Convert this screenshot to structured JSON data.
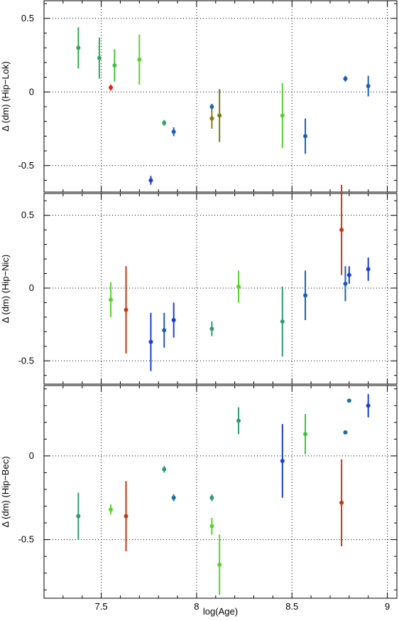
{
  "chart_data": {
    "type": "scatter",
    "shared_x": {
      "label": "log(Age)",
      "range": [
        7.2,
        9.05
      ],
      "ticks": [
        7.5,
        8,
        8.5,
        9
      ],
      "tick_labels": [
        "7.5",
        "8",
        "8.5",
        "9"
      ]
    },
    "grid": true,
    "grid_style": "dotted",
    "panels": [
      {
        "ylabel": "Δ (dm)  (Hip−Lok)",
        "ylim": [
          -0.68,
          0.62
        ],
        "yticks": [
          0.5,
          0,
          -0.5
        ],
        "ytick_labels": [
          "0.5",
          "0",
          "-0.5"
        ],
        "points": [
          {
            "x": 7.38,
            "y": 0.3,
            "err": 0.14,
            "color": "#2eaa58"
          },
          {
            "x": 7.49,
            "y": 0.23,
            "err": 0.14,
            "color": "#2eaa58"
          },
          {
            "x": 7.55,
            "y": 0.03,
            "err": 0.02,
            "color": "#e82010"
          },
          {
            "x": 7.57,
            "y": 0.18,
            "err": 0.11,
            "color": "#3cc43c"
          },
          {
            "x": 7.7,
            "y": 0.22,
            "err": 0.17,
            "color": "#5ad12e"
          },
          {
            "x": 7.76,
            "y": -0.6,
            "err": 0.03,
            "color": "#1e3fd0"
          },
          {
            "x": 7.83,
            "y": -0.21,
            "err": 0.02,
            "color": "#2eaa58"
          },
          {
            "x": 7.88,
            "y": -0.27,
            "err": 0.03,
            "color": "#1b5fb0"
          },
          {
            "x": 8.08,
            "y": -0.18,
            "err": 0.07,
            "color": "#8a7a10"
          },
          {
            "x": 8.08,
            "y": -0.1,
            "err": 0.02,
            "color": "#1b6fa0"
          },
          {
            "x": 8.12,
            "y": -0.16,
            "err": 0.18,
            "color": "#7a7818"
          },
          {
            "x": 8.45,
            "y": -0.16,
            "err": 0.22,
            "color": "#5ad12e"
          },
          {
            "x": 8.57,
            "y": -0.3,
            "err": 0.12,
            "color": "#1b5fb0"
          },
          {
            "x": 8.78,
            "y": 0.09,
            "err": 0.02,
            "color": "#1b5fb0"
          },
          {
            "x": 8.9,
            "y": 0.04,
            "err": 0.07,
            "color": "#1b5fb0"
          }
        ]
      },
      {
        "ylabel": "Δ (dm)  (Hip−Nic)",
        "ylim": [
          -0.66,
          0.65
        ],
        "yticks": [
          0.5,
          0,
          -0.5
        ],
        "ytick_labels": [
          "0.5",
          "0",
          "-0.5"
        ],
        "points": [
          {
            "x": 7.55,
            "y": -0.08,
            "err": 0.12,
            "color": "#5ad12e"
          },
          {
            "x": 7.63,
            "y": -0.15,
            "err": 0.3,
            "color": "#c03a18"
          },
          {
            "x": 7.76,
            "y": -0.37,
            "err": 0.2,
            "color": "#1e3fd0"
          },
          {
            "x": 7.83,
            "y": -0.29,
            "err": 0.12,
            "color": "#1b5fb0"
          },
          {
            "x": 7.88,
            "y": -0.22,
            "err": 0.12,
            "color": "#1e3fd0"
          },
          {
            "x": 8.08,
            "y": -0.28,
            "err": 0.05,
            "color": "#2e9a78"
          },
          {
            "x": 8.22,
            "y": 0.01,
            "err": 0.11,
            "color": "#5ad12e"
          },
          {
            "x": 8.45,
            "y": -0.23,
            "err": 0.24,
            "color": "#2e9a78"
          },
          {
            "x": 8.57,
            "y": -0.05,
            "err": 0.17,
            "color": "#1b5fb0"
          },
          {
            "x": 8.76,
            "y": 0.4,
            "err": 0.31,
            "color": "#c03a18"
          },
          {
            "x": 8.78,
            "y": 0.03,
            "err": 0.12,
            "color": "#1b5fb0"
          },
          {
            "x": 8.8,
            "y": 0.09,
            "err": 0.06,
            "color": "#1e3fd0"
          },
          {
            "x": 8.9,
            "y": 0.13,
            "err": 0.08,
            "color": "#1e3fd0"
          }
        ]
      },
      {
        "ylabel": "Δ (dm)  (Hip−Bec)",
        "ylim": [
          -0.85,
          0.42
        ],
        "yticks": [
          0,
          -0.5
        ],
        "ytick_labels": [
          "0",
          "-0.5"
        ],
        "points": [
          {
            "x": 7.38,
            "y": -0.36,
            "err": 0.14,
            "color": "#2e9a78"
          },
          {
            "x": 7.55,
            "y": -0.32,
            "err": 0.03,
            "color": "#5ad12e"
          },
          {
            "x": 7.63,
            "y": -0.36,
            "err": 0.21,
            "color": "#c03a18"
          },
          {
            "x": 7.83,
            "y": -0.08,
            "err": 0.02,
            "color": "#2e9a78"
          },
          {
            "x": 7.88,
            "y": -0.25,
            "err": 0.02,
            "color": "#1b6fa0"
          },
          {
            "x": 8.08,
            "y": -0.25,
            "err": 0.02,
            "color": "#2e9a78"
          },
          {
            "x": 8.08,
            "y": -0.42,
            "err": 0.05,
            "color": "#5ad12e"
          },
          {
            "x": 8.12,
            "y": -0.65,
            "err": 0.18,
            "color": "#5ad12e"
          },
          {
            "x": 8.22,
            "y": 0.21,
            "err": 0.08,
            "color": "#2e9a78"
          },
          {
            "x": 8.45,
            "y": -0.03,
            "err": 0.22,
            "color": "#1e3fd0"
          },
          {
            "x": 8.57,
            "y": 0.13,
            "err": 0.12,
            "color": "#3cc43c"
          },
          {
            "x": 8.76,
            "y": -0.28,
            "err": 0.26,
            "color": "#c03a18"
          },
          {
            "x": 8.78,
            "y": 0.14,
            "err": 0.01,
            "color": "#1b6fa0"
          },
          {
            "x": 8.8,
            "y": 0.33,
            "err": 0.01,
            "color": "#1b6fa0"
          },
          {
            "x": 8.9,
            "y": 0.3,
            "err": 0.07,
            "color": "#1e3fd0"
          }
        ]
      }
    ]
  }
}
